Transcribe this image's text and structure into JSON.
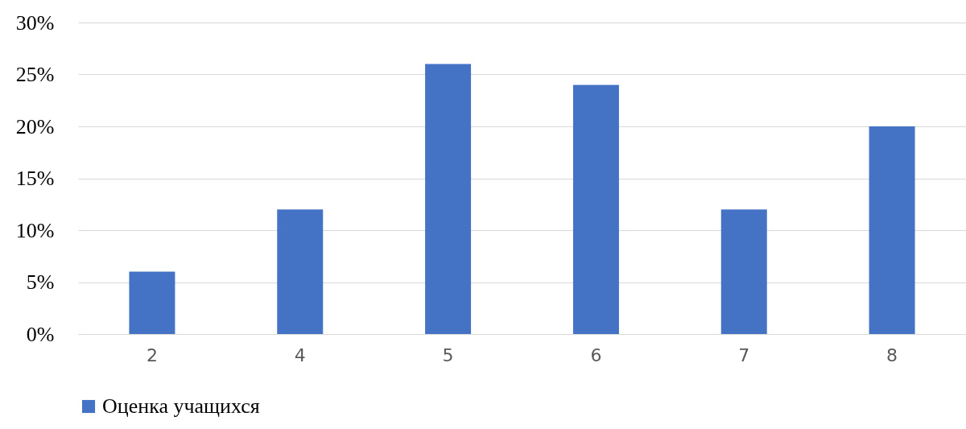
{
  "chart_data": {
    "type": "bar",
    "categories": [
      "2",
      "4",
      "5",
      "6",
      "7",
      "8"
    ],
    "series": [
      {
        "name": "Оценка учащихся",
        "color": "#4472c4",
        "values": [
          6,
          12,
          26,
          24,
          12,
          20
        ]
      }
    ],
    "ylim": [
      0,
      30
    ],
    "yticks": [
      {
        "value": 0,
        "label": "0%"
      },
      {
        "value": 5,
        "label": "5%"
      },
      {
        "value": 10,
        "label": "10%"
      },
      {
        "value": 15,
        "label": "15%"
      },
      {
        "value": 20,
        "label": "20%"
      },
      {
        "value": 25,
        "label": "25%"
      },
      {
        "value": 30,
        "label": "30%"
      }
    ],
    "grid": "y",
    "legend": "bottom"
  }
}
